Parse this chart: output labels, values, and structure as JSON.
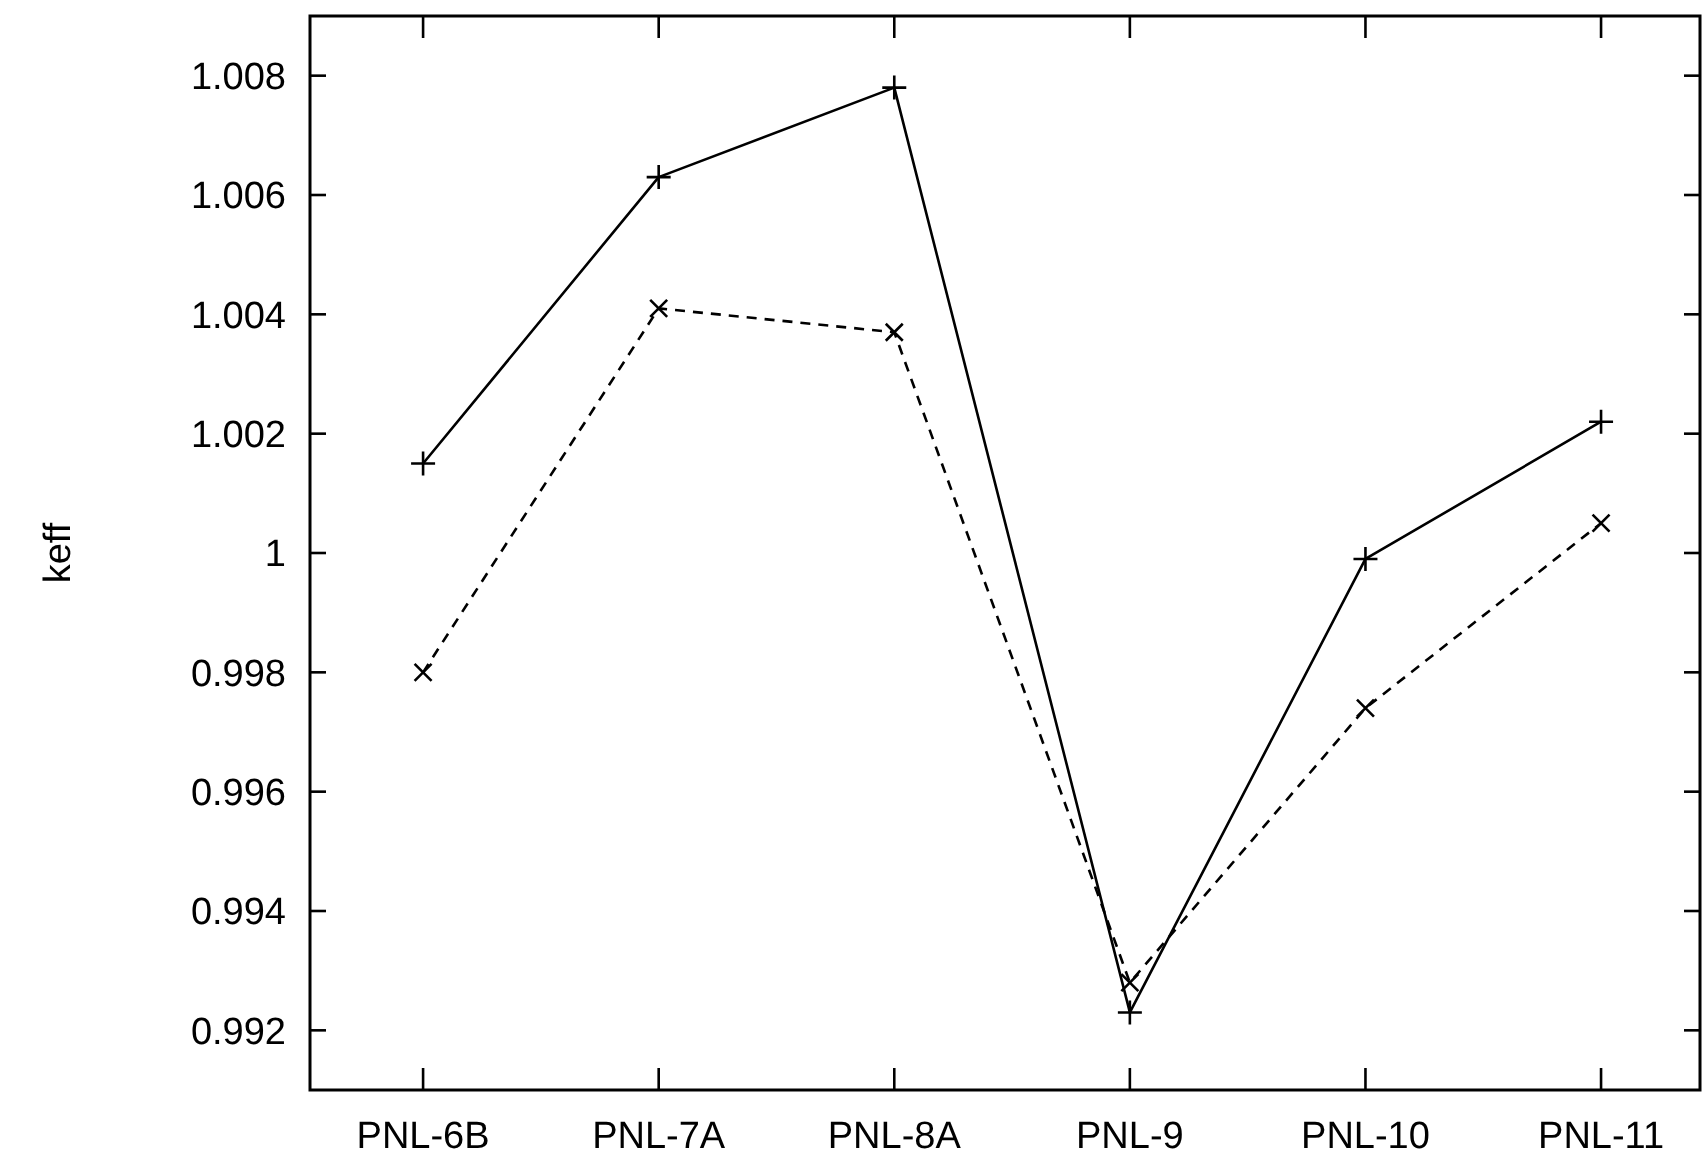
{
  "chart_data": {
    "type": "line",
    "ylabel": "keff",
    "categories": [
      "PNL-6B",
      "PNL-7A",
      "PNL-8A",
      "PNL-9",
      "PNL-10",
      "PNL-11"
    ],
    "series": [
      {
        "color": "#000000",
        "line_style": "solid",
        "marker": "cross",
        "values": [
          1.0015,
          1.0063,
          1.0078,
          0.9923,
          0.9999,
          1.0022
        ]
      },
      {
        "color": "#000000",
        "line_style": "dashed",
        "marker": "cross",
        "values": [
          0.998,
          1.0041,
          1.0037,
          0.9928,
          0.9974,
          1.0005
        ]
      }
    ],
    "ylim": [
      0.991,
      1.009
    ],
    "yticks": [
      {
        "value": 0.992,
        "label": "0.992"
      },
      {
        "value": 0.994,
        "label": "0.994"
      },
      {
        "value": 0.996,
        "label": "0.996"
      },
      {
        "value": 0.998,
        "label": "0.998"
      },
      1,
      {
        "value": 1.002,
        "label": "1.002"
      },
      {
        "value": 1.004,
        "label": "1.004"
      },
      {
        "value": 1.006,
        "label": "1.006"
      },
      {
        "value": 1.008,
        "label": "1.008"
      }
    ],
    "grid": false
  }
}
